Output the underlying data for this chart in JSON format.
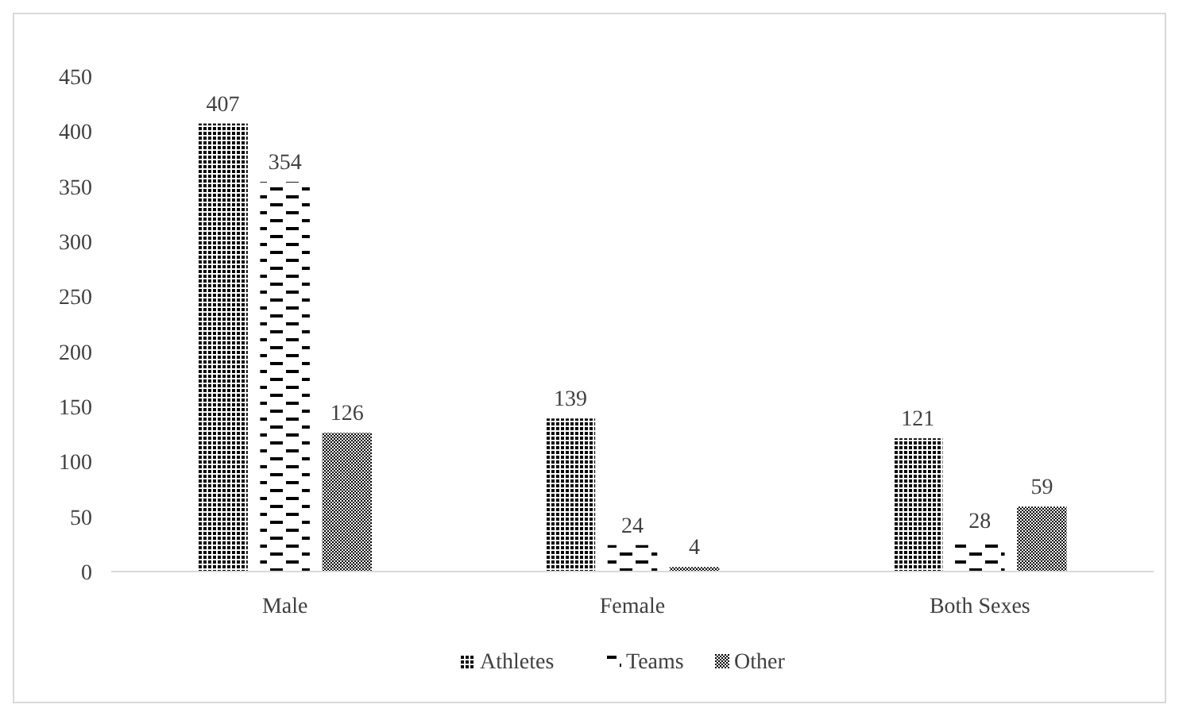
{
  "chart_data": {
    "type": "bar",
    "categories": [
      "Male",
      "Female",
      "Both Sexes"
    ],
    "series": [
      {
        "name": "Athletes",
        "color": "#000000",
        "values": [
          407,
          139,
          121
        ]
      },
      {
        "name": "Teams",
        "color": "#000000",
        "values": [
          354,
          24,
          28
        ]
      },
      {
        "name": "Other",
        "color": "#000000",
        "values": [
          126,
          4,
          59
        ]
      }
    ],
    "ylim": [
      0,
      450
    ],
    "yticks": [
      0,
      50,
      100,
      150,
      200,
      250,
      300,
      350,
      400,
      450
    ],
    "data_labels": true,
    "grid": false,
    "legend": "bottom"
  }
}
